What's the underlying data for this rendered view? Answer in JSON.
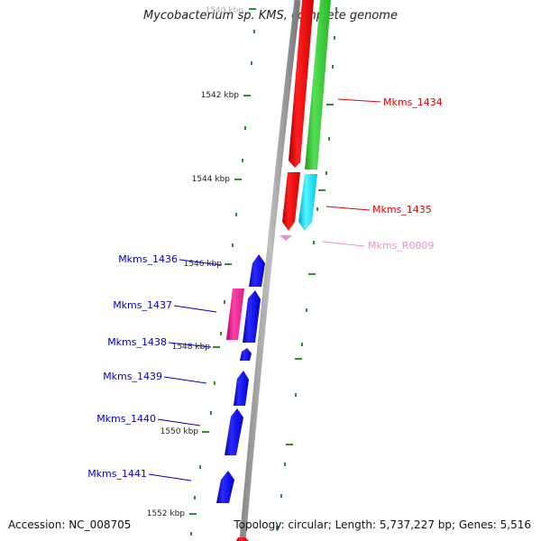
{
  "title": "Mycobacterium sp. KMS, complete genome",
  "footer": {
    "accession": "Accession: NC_008705",
    "topology": "Topology: circular; Length: 5,737,227 bp; Genes: 5,516"
  },
  "ticks": {
    "labels": [
      "1540 kbp",
      "1542 kbp",
      "1544 kbp",
      "1546 kbp",
      "1548 kbp",
      "1550 kbp",
      "1552 kbp"
    ]
  },
  "genes": [
    {
      "label": "Mkms_1434",
      "color": "#dd0000",
      "strand": "plus"
    },
    {
      "label": "Mkms_1435",
      "color": "#dd0000",
      "strand": "plus"
    },
    {
      "label": "Mkms_R0009",
      "color": "#f08cc8",
      "strand": "plus"
    },
    {
      "label": "Mkms_1436",
      "color": "#0000cc",
      "strand": "minus"
    },
    {
      "label": "Mkms_1437",
      "color": "#0000cc",
      "strand": "minus"
    },
    {
      "label": "Mkms_1438",
      "color": "#0000cc",
      "strand": "minus"
    },
    {
      "label": "Mkms_1439",
      "color": "#0000cc",
      "strand": "minus"
    },
    {
      "label": "Mkms_1440",
      "color": "#0000cc",
      "strand": "minus"
    },
    {
      "label": "Mkms_1441",
      "color": "#0000cc",
      "strand": "minus"
    }
  ]
}
